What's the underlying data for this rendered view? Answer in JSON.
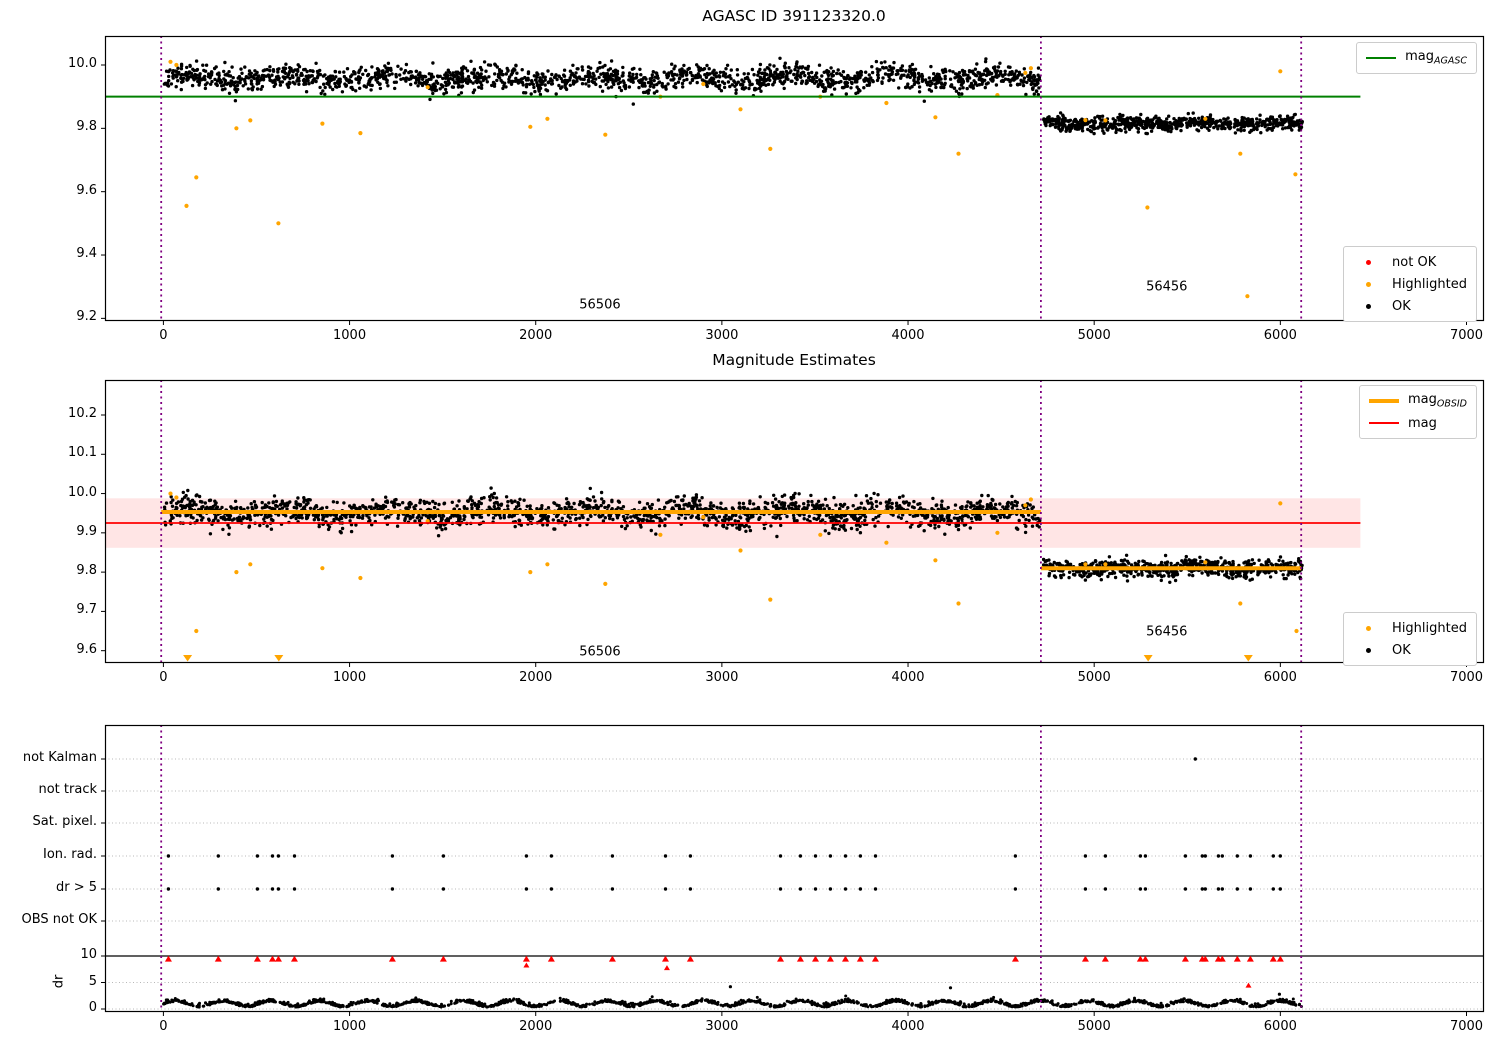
{
  "chart_data": [
    {
      "type": "scatter",
      "title": "AGASC ID 391123320.0",
      "xtick_values": [
        0,
        1000,
        2000,
        3000,
        4000,
        5000,
        6000,
        7000
      ],
      "xtick_labels": [
        "0",
        "1000",
        "2000",
        "3000",
        "4000",
        "5000",
        "6000",
        "7000"
      ],
      "ytick_values": [
        10.0,
        9.8,
        9.6,
        9.4,
        9.2
      ],
      "ytick_labels": [
        "10.0",
        "9.8",
        "9.6",
        "9.4",
        "9.2"
      ],
      "ylim": [
        9.19,
        10.09
      ],
      "xlim": [
        -310,
        7095
      ],
      "mag_agasc_line": {
        "label_main": "mag",
        "label_sub": "AGASC",
        "value": 9.9,
        "color": "#008000",
        "x_start": -310,
        "x_end": 6430
      },
      "vlines": {
        "color": "#800080",
        "x_values": [
          -12,
          4714,
          6112
        ]
      },
      "clusters": [
        {
          "x0": 5,
          "x1": 4708,
          "n": 1800,
          "mean": 9.958,
          "sigma": 0.019,
          "wave_amp": 0.011,
          "wave_period": 540,
          "clip": [
            9.872,
            10.022
          ],
          "color": "#000000"
        },
        {
          "x0": 4728,
          "x1": 6118,
          "n": 700,
          "mean": 9.815,
          "sigma": 0.011,
          "wave_amp": 0.004,
          "wave_period": 420,
          "clip": [
            9.778,
            9.858
          ],
          "color": "#000000"
        }
      ],
      "highlighted_points": [
        [
          38,
          10.01
        ],
        [
          70,
          10.0
        ],
        [
          124,
          9.555
        ],
        [
          177,
          9.645
        ],
        [
          392,
          9.8
        ],
        [
          467,
          9.825
        ],
        [
          618,
          9.5
        ],
        [
          854,
          9.815
        ],
        [
          1058,
          9.785
        ],
        [
          1420,
          9.93
        ],
        [
          1971,
          9.805
        ],
        [
          2063,
          9.83
        ],
        [
          2374,
          9.78
        ],
        [
          2670,
          9.9
        ],
        [
          2900,
          9.94
        ],
        [
          3100,
          9.86
        ],
        [
          3260,
          9.735
        ],
        [
          3529,
          9.9
        ],
        [
          3884,
          9.88
        ],
        [
          4147,
          9.835
        ],
        [
          4271,
          9.72
        ],
        [
          4480,
          9.905
        ],
        [
          4630,
          9.975
        ],
        [
          4660,
          9.99
        ],
        [
          4953,
          9.826
        ],
        [
          5060,
          9.825
        ],
        [
          5286,
          9.55
        ],
        [
          5597,
          9.83
        ],
        [
          5785,
          9.72
        ],
        [
          5823,
          9.27
        ],
        [
          6000,
          9.98
        ],
        [
          6081,
          9.655
        ]
      ],
      "highlight_color": "#ffa500",
      "annotations": [
        {
          "text": "56506",
          "x": 2345,
          "y": 9.242
        },
        {
          "text": "56456",
          "x": 5390,
          "y": 9.299
        }
      ],
      "legend_markers": [
        {
          "label": "not OK",
          "color": "#ff0000"
        },
        {
          "label": "Highlighted",
          "color": "#ffa500"
        },
        {
          "label": "OK",
          "color": "#000000"
        }
      ]
    },
    {
      "type": "scatter",
      "title": "Magnitude Estimates",
      "xtick_values": [
        0,
        1000,
        2000,
        3000,
        4000,
        5000,
        6000,
        7000
      ],
      "xtick_labels": [
        "0",
        "1000",
        "2000",
        "3000",
        "4000",
        "5000",
        "6000",
        "7000"
      ],
      "ytick_values": [
        10.2,
        10.1,
        10.0,
        9.9,
        9.8,
        9.7,
        9.6
      ],
      "ytick_labels": [
        "10.2",
        "10.1",
        "10.0",
        "9.9",
        "9.8",
        "9.7",
        "9.6"
      ],
      "ylim": [
        9.57,
        10.29
      ],
      "xlim": [
        -310,
        7095
      ],
      "mag_line": {
        "label": "mag",
        "value": 9.925,
        "color": "#ff0000",
        "band_low": 9.862,
        "band_high": 9.988,
        "band_color": "rgba(255,0,0,0.10)",
        "x_start": -310,
        "x_end": 6430
      },
      "mag_obsid": {
        "label_main": "mag",
        "label_sub": "OBSID",
        "color": "#ffa500",
        "segments": [
          {
            "x0": -12,
            "x1": 4714,
            "value": 9.953
          },
          {
            "x0": 4714,
            "x1": 6112,
            "value": 9.81
          }
        ]
      },
      "vlines": {
        "color": "#800080",
        "x_values": [
          -12,
          4714,
          6112
        ]
      },
      "clusters": [
        {
          "x0": 5,
          "x1": 4708,
          "n": 1800,
          "mean": 9.952,
          "sigma": 0.018,
          "wave_amp": 0.01,
          "wave_period": 540,
          "clip": [
            9.876,
            10.016
          ],
          "color": "#000000"
        },
        {
          "x0": 4728,
          "x1": 6118,
          "n": 700,
          "mean": 9.81,
          "sigma": 0.011,
          "wave_amp": 0.004,
          "wave_period": 420,
          "clip": [
            9.772,
            9.852
          ],
          "color": "#000000"
        }
      ],
      "highlighted_points": [
        [
          38,
          10.0
        ],
        [
          70,
          9.99
        ],
        [
          177,
          9.65
        ],
        [
          392,
          9.8
        ],
        [
          467,
          9.82
        ],
        [
          854,
          9.81
        ],
        [
          1058,
          9.785
        ],
        [
          1420,
          9.93
        ],
        [
          1971,
          9.8
        ],
        [
          2063,
          9.82
        ],
        [
          2374,
          9.77
        ],
        [
          2670,
          9.895
        ],
        [
          2900,
          9.94
        ],
        [
          3100,
          9.855
        ],
        [
          3260,
          9.73
        ],
        [
          3529,
          9.895
        ],
        [
          3884,
          9.875
        ],
        [
          4147,
          9.83
        ],
        [
          4271,
          9.72
        ],
        [
          4480,
          9.9
        ],
        [
          4630,
          9.97
        ],
        [
          4660,
          9.985
        ],
        [
          4953,
          9.82
        ],
        [
          5060,
          9.82
        ],
        [
          5597,
          9.825
        ],
        [
          5785,
          9.72
        ],
        [
          6000,
          9.975
        ],
        [
          6087,
          9.65
        ]
      ],
      "highlight_color": "#ffa500",
      "clipped_low_points_x": [
        130,
        620,
        5290,
        5828
      ],
      "annotations": [
        {
          "text": "56506",
          "x": 2345,
          "y": 9.597
        },
        {
          "text": "56456",
          "x": 5390,
          "y": 9.648
        }
      ],
      "legend_markers": [
        {
          "label": "Highlighted",
          "color": "#ffa500"
        },
        {
          "label": "OK",
          "color": "#000000"
        }
      ]
    },
    {
      "type": "flags",
      "rows": [
        "not Kalman",
        "not track",
        "Sat. pixel.",
        "Ion. rad.",
        "dr > 5",
        "OBS not OK"
      ],
      "dr_axis_label": "dr",
      "dr_tick_values": [
        10,
        5,
        0
      ],
      "dr_tick_labels": [
        "10",
        "5",
        "0"
      ],
      "dr_limit_line": 10,
      "xtick_values": [
        0,
        1000,
        2000,
        3000,
        4000,
        5000,
        6000,
        7000
      ],
      "xtick_labels": [
        "0",
        "1000",
        "2000",
        "3000",
        "4000",
        "5000",
        "6000",
        "7000"
      ],
      "vlines": {
        "color": "#800080",
        "x_values": [
          -12,
          4714,
          6112
        ]
      },
      "not_kalman_x": [
        5543
      ],
      "not_track_x": [],
      "sat_pixel_x": [],
      "ion_rad_x": [
        27,
        295,
        505,
        586,
        618,
        704,
        1230,
        1504,
        1950,
        2084,
        2412,
        2697,
        2831,
        3315,
        3422,
        3503,
        3583,
        3664,
        3744,
        3825,
        4577,
        4953,
        5060,
        5248,
        5275,
        5490,
        5581,
        5597,
        5667,
        5688,
        5769,
        5839,
        5962,
        6000
      ],
      "dr_gt5_x": [
        27,
        295,
        505,
        586,
        618,
        704,
        1230,
        1504,
        1950,
        2084,
        2412,
        2697,
        2831,
        3315,
        3422,
        3503,
        3583,
        3664,
        3744,
        3825,
        4577,
        4953,
        5060,
        5248,
        5275,
        5490,
        5581,
        5597,
        5667,
        5688,
        5769,
        5839,
        5962,
        6000
      ],
      "obs_not_ok_x": [],
      "red_dr10_x": [
        27,
        295,
        505,
        586,
        618,
        704,
        1230,
        1504,
        1950,
        2084,
        2412,
        2697,
        2831,
        3315,
        3422,
        3503,
        3583,
        3664,
        3744,
        3825,
        4577,
        4953,
        5060,
        5248,
        5275,
        5490,
        5581,
        5597,
        5667,
        5688,
        5769,
        5839,
        5962,
        6000
      ],
      "red_dr_points": [
        [
          1950,
          8.3
        ],
        [
          2705,
          7.8
        ],
        [
          5829,
          4.5
        ]
      ],
      "black_dr_outliers": [
        [
          3046,
          4.2
        ],
        [
          4228,
          4.0
        ],
        [
          5995,
          2.8
        ]
      ],
      "red_color": "#ff0000",
      "dr_band": {
        "x0": 0,
        "x1": 6115,
        "n": 1700,
        "base": 0.85,
        "wave_amp": 0.5,
        "wave_period": 258,
        "noise": 0.28,
        "clip": [
          0.07,
          3.2
        ]
      }
    }
  ]
}
